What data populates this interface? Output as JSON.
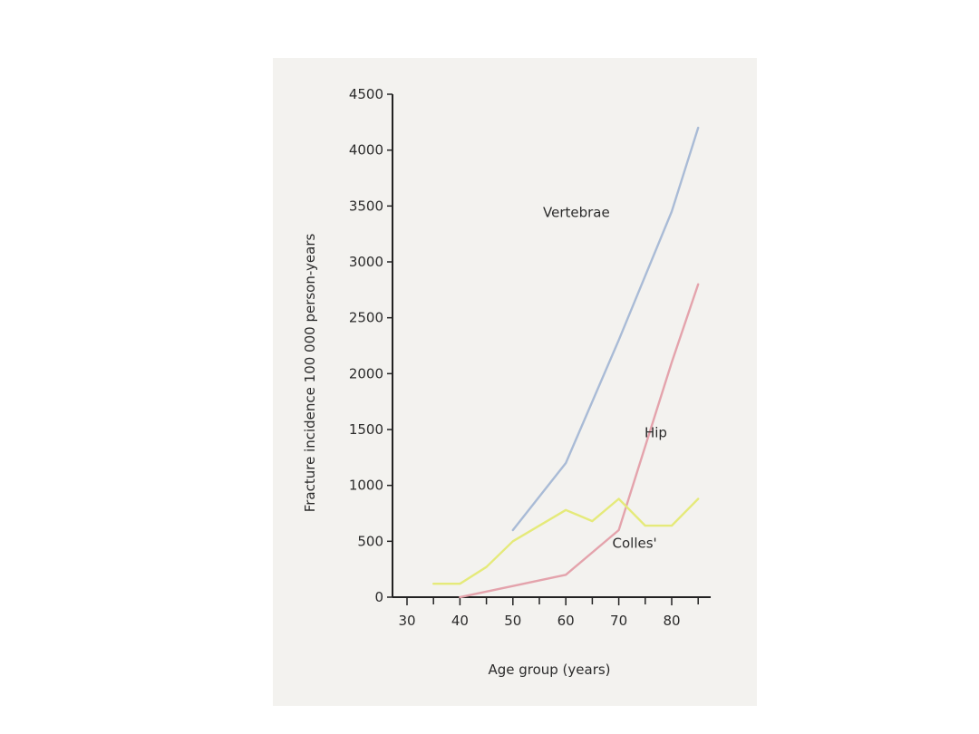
{
  "chart_data": {
    "type": "line",
    "title": "",
    "xlabel": "Age group (years)",
    "ylabel": "Fracture incidence 100 000 person-years",
    "xlim": [
      25,
      86
    ],
    "ylim": [
      0,
      4500
    ],
    "xticks": [
      30,
      40,
      50,
      60,
      70,
      80
    ],
    "xminor": [
      35,
      45,
      55,
      65,
      75,
      85
    ],
    "yticks": [
      0,
      500,
      1000,
      1500,
      2000,
      2500,
      3000,
      3500,
      4000,
      4500
    ],
    "grid": false,
    "legend": "inline labels",
    "series": [
      {
        "name": "Vertebrae",
        "color": "#a9bbd6",
        "x": [
          50,
          60,
          70,
          80,
          85
        ],
        "y": [
          600,
          1200,
          2300,
          3450,
          4200
        ]
      },
      {
        "name": "Hip",
        "color": "#e4a3ac",
        "x": [
          40,
          50,
          60,
          70,
          80,
          85
        ],
        "y": [
          0,
          100,
          200,
          600,
          2100,
          2800
        ]
      },
      {
        "name": "Colles'",
        "color": "#e5ea7a",
        "x": [
          35,
          40,
          45,
          50,
          60,
          65,
          70,
          75,
          80,
          85
        ],
        "y": [
          120,
          120,
          270,
          500,
          780,
          680,
          880,
          640,
          640,
          880
        ]
      }
    ],
    "annotations": [
      {
        "text": "Vertebrae",
        "x": 62,
        "y": 3400
      },
      {
        "text": "Hip",
        "x": 77,
        "y": 1430
      },
      {
        "text": "Colles'",
        "x": 73,
        "y": 440
      }
    ]
  }
}
